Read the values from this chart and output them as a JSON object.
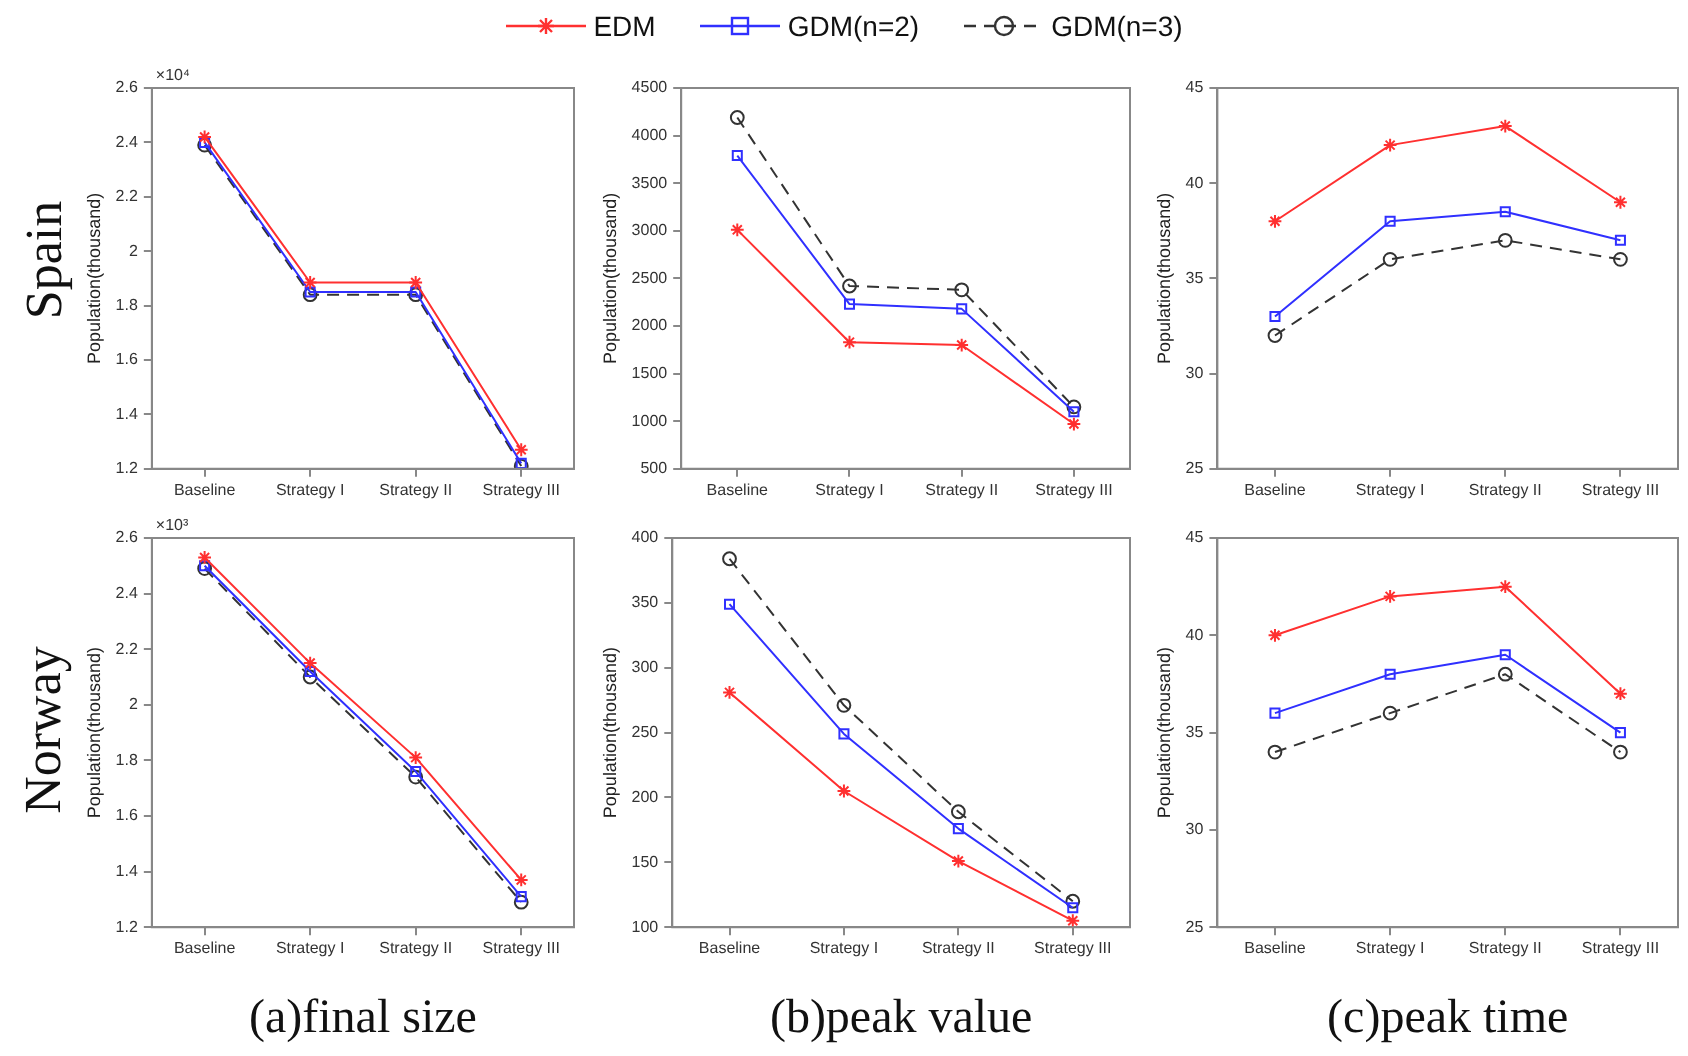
{
  "chart_data": [
    {
      "type": "line",
      "title": "Spain",
      "ylabel": "Population(thousand)",
      "categories": [
        "Baseline",
        "Strategy I",
        "Strategy II",
        "Strategy III"
      ],
      "legend": "top",
      "grid": false,
      "annotations": [
        "×10⁴"
      ],
      "ylim": [
        1.2,
        2.6
      ],
      "yticks": [
        1.2,
        1.4,
        1.6,
        1.8,
        2,
        2.2,
        2.4,
        2.6
      ],
      "series": [
        {
          "name": "EDM",
          "color": "#ff3030",
          "marker": "cross",
          "line_style": "solid",
          "values": [
            2.42,
            1.885,
            1.885,
            1.27
          ]
        },
        {
          "name": "GDM(n=2)",
          "color": "#3030ff",
          "marker": "square",
          "line_style": "solid",
          "values": [
            2.4,
            1.85,
            1.85,
            1.22
          ]
        },
        {
          "name": "GDM(n=3)",
          "color": "#333333",
          "marker": "circle",
          "line_style": "dashed",
          "values": [
            2.39,
            1.84,
            1.84,
            1.21
          ]
        }
      ]
    },
    {
      "type": "line",
      "ylabel": "Population(thousand)",
      "categories": [
        "Baseline",
        "Strategy I",
        "Strategy II",
        "Strategy III"
      ],
      "grid": false,
      "ylim": [
        500,
        4500
      ],
      "yticks": [
        500,
        1000,
        1500,
        2000,
        2500,
        3000,
        3500,
        4000,
        4500
      ],
      "series": [
        {
          "color": "#ff3030",
          "marker": "cross",
          "line_style": "solid",
          "values": [
            3010,
            1830,
            1800,
            970
          ]
        },
        {
          "color": "#3030ff",
          "marker": "square",
          "line_style": "solid",
          "values": [
            3790,
            2230,
            2180,
            1100
          ]
        },
        {
          "color": "#333333",
          "marker": "circle",
          "line_style": "dashed",
          "values": [
            4190,
            2420,
            2380,
            1150
          ]
        }
      ]
    },
    {
      "type": "line",
      "ylabel": "Population(thousand)",
      "categories": [
        "Baseline",
        "Strategy I",
        "Strategy II",
        "Strategy III"
      ],
      "grid": false,
      "ylim": [
        25,
        45
      ],
      "yticks": [
        25,
        30,
        35,
        40,
        45
      ],
      "series": [
        {
          "color": "#ff3030",
          "marker": "cross",
          "line_style": "solid",
          "values": [
            38,
            42,
            43,
            39
          ]
        },
        {
          "color": "#3030ff",
          "marker": "square",
          "line_style": "solid",
          "values": [
            33,
            38,
            38.5,
            37
          ]
        },
        {
          "color": "#333333",
          "marker": "circle",
          "line_style": "dashed",
          "values": [
            32,
            36,
            37,
            36
          ]
        }
      ]
    },
    {
      "type": "line",
      "title": "Norway",
      "ylabel": "Population(thousand)",
      "xlabel": "(a)final size",
      "categories": [
        "Baseline",
        "Strategy I",
        "Strategy II",
        "Strategy III"
      ],
      "grid": false,
      "annotations": [
        "×10³"
      ],
      "ylim": [
        1.2,
        2.6
      ],
      "yticks": [
        1.2,
        1.4,
        1.6,
        1.8,
        2,
        2.2,
        2.4,
        2.6
      ],
      "series": [
        {
          "color": "#ff3030",
          "marker": "cross",
          "line_style": "solid",
          "values": [
            2.53,
            2.15,
            1.81,
            1.37
          ]
        },
        {
          "color": "#3030ff",
          "marker": "square",
          "line_style": "solid",
          "values": [
            2.5,
            2.12,
            1.76,
            1.31
          ]
        },
        {
          "color": "#333333",
          "marker": "circle",
          "line_style": "dashed",
          "values": [
            2.49,
            2.1,
            1.74,
            1.29
          ]
        }
      ]
    },
    {
      "type": "line",
      "ylabel": "Population(thousand)",
      "xlabel": "(b)peak value",
      "categories": [
        "Baseline",
        "Strategy I",
        "Strategy II",
        "Strategy III"
      ],
      "grid": false,
      "ylim": [
        100,
        400
      ],
      "yticks": [
        100,
        150,
        200,
        250,
        300,
        350,
        400
      ],
      "series": [
        {
          "color": "#ff3030",
          "marker": "cross",
          "line_style": "solid",
          "values": [
            281,
            205,
            151,
            105
          ]
        },
        {
          "color": "#3030ff",
          "marker": "square",
          "line_style": "solid",
          "values": [
            349,
            249,
            176,
            115
          ]
        },
        {
          "color": "#333333",
          "marker": "circle",
          "line_style": "dashed",
          "values": [
            384,
            271,
            189,
            120
          ]
        }
      ]
    },
    {
      "type": "line",
      "ylabel": "Population(thousand)",
      "xlabel": "(c)peak time",
      "categories": [
        "Baseline",
        "Strategy I",
        "Strategy II",
        "Strategy III"
      ],
      "grid": false,
      "ylim": [
        25,
        45
      ],
      "yticks": [
        25,
        30,
        35,
        40,
        45
      ],
      "series": [
        {
          "color": "#ff3030",
          "marker": "cross",
          "line_style": "solid",
          "values": [
            40,
            42,
            42.5,
            37
          ]
        },
        {
          "color": "#3030ff",
          "marker": "square",
          "line_style": "solid",
          "values": [
            36,
            38,
            39,
            35
          ]
        },
        {
          "color": "#333333",
          "marker": "circle",
          "line_style": "dashed",
          "values": [
            34,
            36,
            38,
            34
          ]
        }
      ]
    }
  ]
}
